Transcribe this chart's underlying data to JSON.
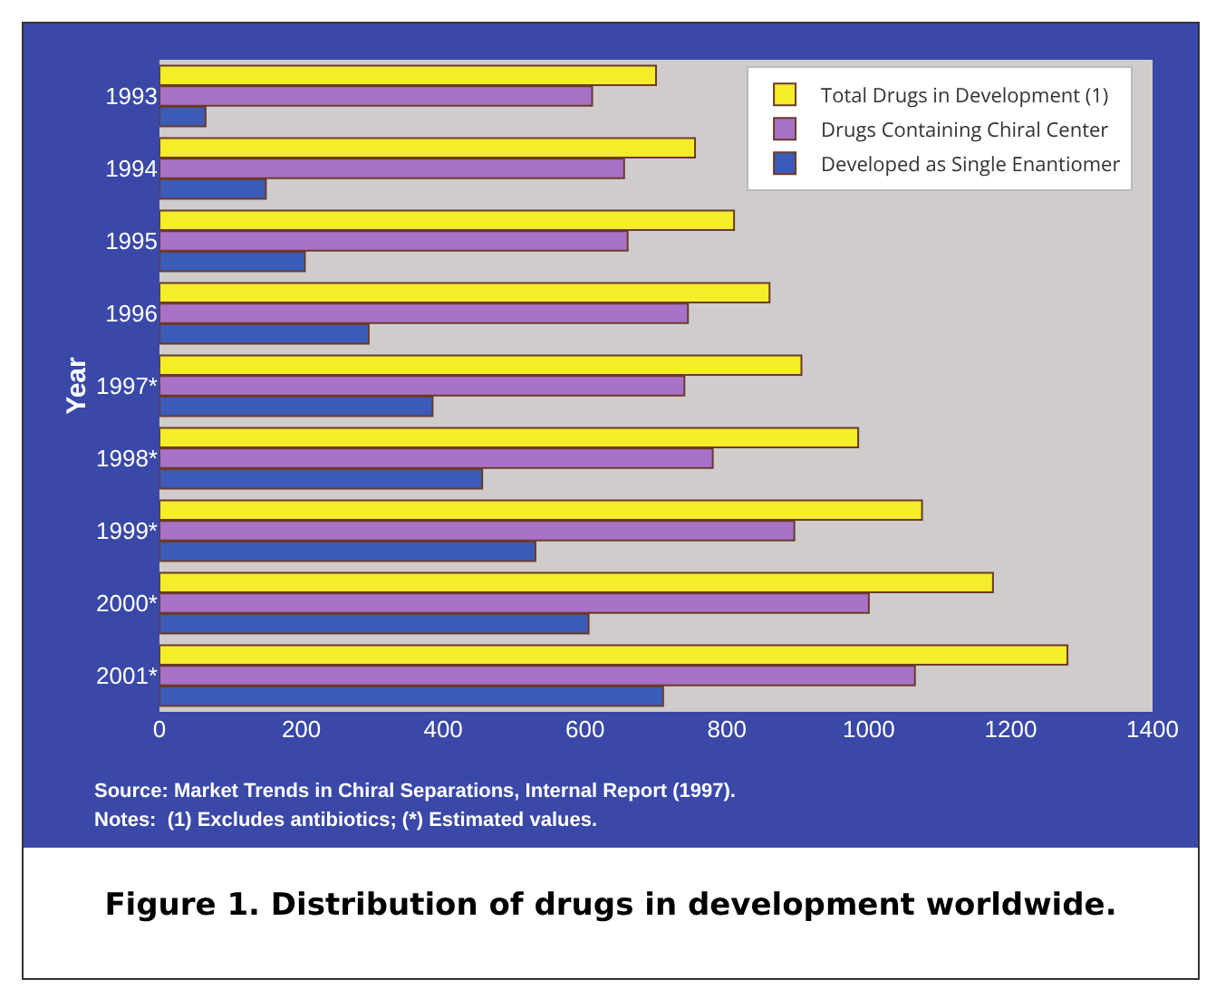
{
  "chart_data": {
    "type": "bar",
    "orientation": "horizontal",
    "title": "Figure 1.  Distribution of drugs in development worldwide.",
    "ylabel": "Year",
    "categories": [
      "1993",
      "1994",
      "1995",
      "1996",
      "1997*",
      "1998*",
      "1999*",
      "2000*",
      "2001*"
    ],
    "series": [
      {
        "name": "Total Drugs in Development (1)",
        "color": "#f5ec2a",
        "values": [
          700,
          755,
          810,
          860,
          905,
          985,
          1075,
          1175,
          1280
        ]
      },
      {
        "name": "Drugs Containing Chiral Center",
        "color": "#a872c8",
        "values": [
          610,
          655,
          660,
          745,
          740,
          780,
          895,
          1000,
          1065
        ]
      },
      {
        "name": "Developed as Single Enantiomer",
        "color": "#3a5cb8",
        "values": [
          65,
          150,
          205,
          295,
          385,
          455,
          530,
          605,
          710
        ]
      }
    ],
    "xlim": [
      0,
      1400
    ],
    "xticks": [
      0,
      200,
      400,
      600,
      800,
      1000,
      1200,
      1400
    ],
    "grid": false,
    "legend": "top right",
    "annotations": [
      "Source: Market Trends in Chiral Separations, Internal Report (1997).",
      "Notes:  (1) Excludes antibiotics; (*) Estimated values."
    ]
  }
}
